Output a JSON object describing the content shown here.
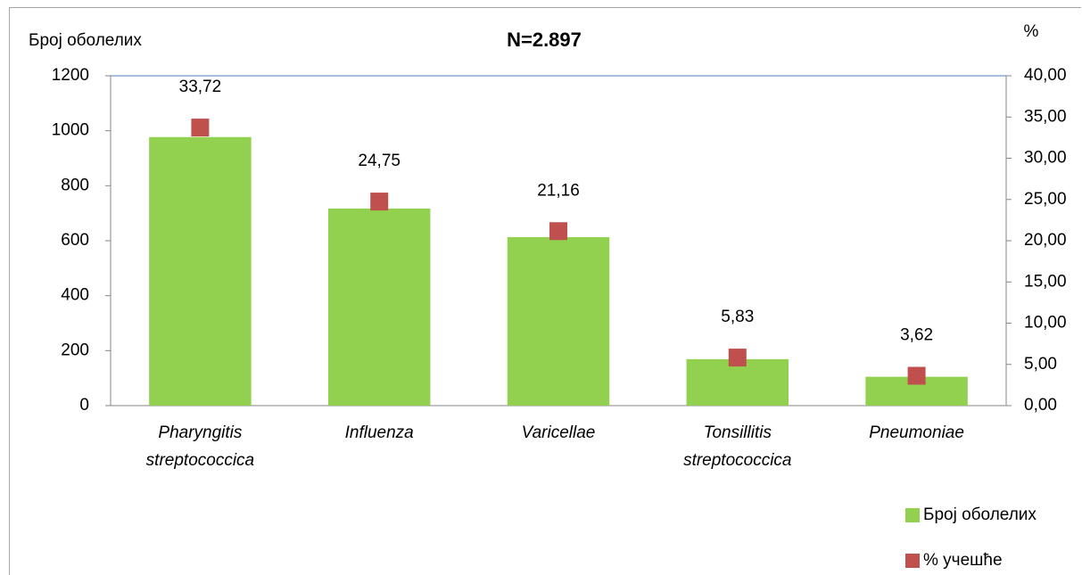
{
  "chart_data": {
    "type": "bar",
    "title": "N=2.897",
    "y_label": "Број оболелих",
    "y2_label": "%",
    "categories": [
      "Pharyngitis streptococcica",
      "Influenza",
      "Varicellae",
      "Tonsillitis streptococcica",
      "Pneumoniae"
    ],
    "series": [
      {
        "name": "Број оболелих",
        "type": "bar",
        "color": "#92d050",
        "values": [
          977,
          717,
          613,
          169,
          105
        ]
      },
      {
        "name": "% учешће",
        "type": "scatter",
        "axis": "y2",
        "color": "#c0504d",
        "values": [
          33.72,
          24.75,
          21.16,
          5.83,
          3.62
        ],
        "value_labels": [
          "33,72",
          "24,75",
          "21,16",
          "5,83",
          "3,62"
        ]
      }
    ],
    "ylim": [
      0,
      1200
    ],
    "yticks": [
      0,
      200,
      400,
      600,
      800,
      1000,
      1200
    ],
    "y2lim": [
      0,
      40
    ],
    "y2ticks": [
      {
        "value": 0,
        "label": "0,00"
      },
      {
        "value": 5,
        "label": "5,00"
      },
      {
        "value": 10,
        "label": "10,00"
      },
      {
        "value": 15,
        "label": "15,00"
      },
      {
        "value": 20,
        "label": "20,00"
      },
      {
        "value": 25,
        "label": "25,00"
      },
      {
        "value": 30,
        "label": "30,00"
      },
      {
        "value": 35,
        "label": "35,00"
      },
      {
        "value": 40,
        "label": "40,00"
      }
    ],
    "legend": "bottom-right"
  }
}
